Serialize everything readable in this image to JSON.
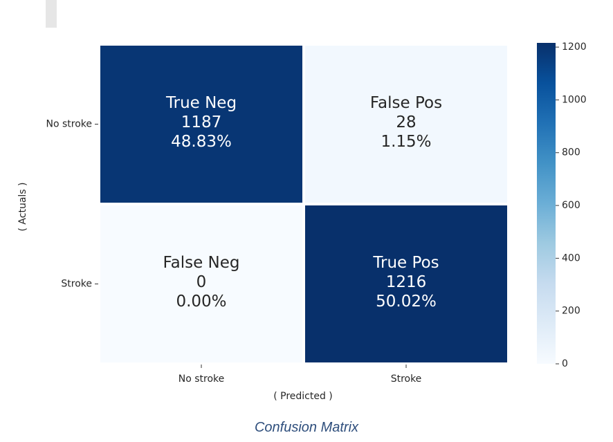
{
  "chart_data": {
    "type": "heatmap",
    "x_categories": [
      "No stroke",
      "Stroke"
    ],
    "y_categories": [
      "No stroke",
      "Stroke"
    ],
    "xlabel": "( Predicted )",
    "ylabel": "( Actuals )",
    "cells": [
      {
        "row": 0,
        "col": 0,
        "label": "True Neg",
        "value": 1187,
        "percent": "48.83%"
      },
      {
        "row": 0,
        "col": 1,
        "label": "False Pos",
        "value": 28,
        "percent": "1.15%"
      },
      {
        "row": 1,
        "col": 0,
        "label": "False Neg",
        "value": 0,
        "percent": "0.00%"
      },
      {
        "row": 1,
        "col": 1,
        "label": "True Pos",
        "value": 1216,
        "percent": "50.02%"
      }
    ],
    "colorbar": {
      "min": 0,
      "max": 1216,
      "ticks": [
        0,
        200,
        400,
        600,
        800,
        1000,
        1200
      ],
      "colormap": "Blues"
    }
  },
  "caption": "Confusion Matrix",
  "colors": {
    "low": "#f7fbff",
    "high": "#08306b",
    "caption": "#2e4e7c"
  }
}
